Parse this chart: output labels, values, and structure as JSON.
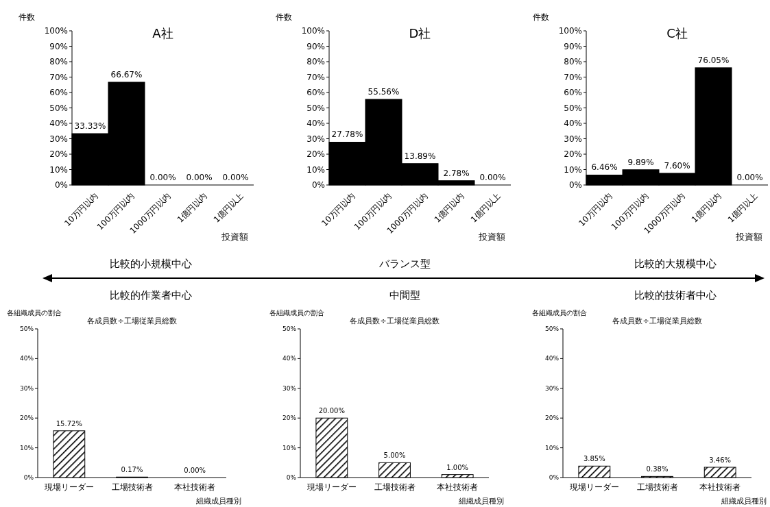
{
  "chart_data": [
    {
      "type": "bar",
      "title": "A社",
      "ylabel": "件数",
      "xlabel": "投資額",
      "categories": [
        "10万円以内",
        "100万円以内",
        "1000万円以内",
        "1億円以内",
        "1億円以上"
      ],
      "values": [
        33.33,
        66.67,
        0,
        0,
        0
      ],
      "value_labels": [
        "33.33%",
        "66.67%",
        "0.00%",
        "0.00%",
        "0.00%"
      ],
      "color": "#000000",
      "ylim": [
        0,
        100
      ],
      "yticks": [
        {
          "value": 0,
          "label": "0%"
        },
        {
          "value": 10,
          "label": "10%"
        },
        {
          "value": 20,
          "label": "20%"
        },
        {
          "value": 30,
          "label": "30%"
        },
        {
          "value": 40,
          "label": "40%"
        },
        {
          "value": 50,
          "label": "50%"
        },
        {
          "value": 60,
          "label": "60%"
        },
        {
          "value": 70,
          "label": "70%"
        },
        {
          "value": 80,
          "label": "80%"
        },
        {
          "value": 90,
          "label": "90%"
        },
        {
          "value": 100,
          "label": "100%"
        }
      ],
      "grid": false,
      "legend": false
    },
    {
      "type": "bar",
      "title": "D社",
      "ylabel": "件数",
      "xlabel": "投資額",
      "categories": [
        "10万円以内",
        "100万円以内",
        "1000万円以内",
        "1億円以内",
        "1億円以上"
      ],
      "values": [
        27.78,
        55.56,
        13.89,
        2.78,
        0
      ],
      "value_labels": [
        "27.78%",
        "55.56%",
        "13.89%",
        "2.78%",
        "0.00%"
      ],
      "color": "#000000",
      "ylim": [
        0,
        100
      ],
      "yticks": [
        {
          "value": 0,
          "label": "0%"
        },
        {
          "value": 10,
          "label": "10%"
        },
        {
          "value": 20,
          "label": "20%"
        },
        {
          "value": 30,
          "label": "30%"
        },
        {
          "value": 40,
          "label": "40%"
        },
        {
          "value": 50,
          "label": "50%"
        },
        {
          "value": 60,
          "label": "60%"
        },
        {
          "value": 70,
          "label": "70%"
        },
        {
          "value": 80,
          "label": "80%"
        },
        {
          "value": 90,
          "label": "90%"
        },
        {
          "value": 100,
          "label": "100%"
        }
      ],
      "grid": false,
      "legend": false
    },
    {
      "type": "bar",
      "title": "C社",
      "ylabel": "件数",
      "xlabel": "投資額",
      "categories": [
        "10万円以内",
        "100万円以内",
        "1000万円以内",
        "1億円以内",
        "1億円以上"
      ],
      "values": [
        6.46,
        9.89,
        7.6,
        76.05,
        0
      ],
      "value_labels": [
        "6.46%",
        "9.89%",
        "7.60%",
        "76.05%",
        "0.00%"
      ],
      "color": "#000000",
      "ylim": [
        0,
        100
      ],
      "yticks": [
        {
          "value": 0,
          "label": "0%"
        },
        {
          "value": 10,
          "label": "10%"
        },
        {
          "value": 20,
          "label": "20%"
        },
        {
          "value": 30,
          "label": "30%"
        },
        {
          "value": 40,
          "label": "40%"
        },
        {
          "value": 50,
          "label": "50%"
        },
        {
          "value": 60,
          "label": "60%"
        },
        {
          "value": 70,
          "label": "70%"
        },
        {
          "value": 80,
          "label": "80%"
        },
        {
          "value": 90,
          "label": "90%"
        },
        {
          "value": 100,
          "label": "100%"
        }
      ],
      "grid": false,
      "legend": false
    },
    {
      "type": "other",
      "annotations": [
        "比較的小規模中心",
        "バランス型",
        "比較的大規模中心",
        "比較的作業者中心",
        "中間型",
        "比較的技術者中心"
      ]
    },
    {
      "type": "bar",
      "title": "各成員数÷工場従業員総数",
      "ylabel": "各組織成員の割合",
      "xlabel": "組織成員種別",
      "categories": [
        "現場リーダー",
        "工場技術者",
        "本社技術者"
      ],
      "values": [
        15.72,
        0.17,
        0
      ],
      "value_labels": [
        "15.72%",
        "0.17%",
        "0.00%"
      ],
      "color": "#000000",
      "ylim": [
        0,
        50
      ],
      "yticks": [
        {
          "value": 0,
          "label": "0%"
        },
        {
          "value": 10,
          "label": "10%"
        },
        {
          "value": 20,
          "label": "20%"
        },
        {
          "value": 30,
          "label": "30%"
        },
        {
          "value": 40,
          "label": "40%"
        },
        {
          "value": 50,
          "label": "50%"
        }
      ],
      "grid": false,
      "legend": false
    },
    {
      "type": "bar",
      "title": "各成員数÷工場従業員総数",
      "ylabel": "各組織成員の割合",
      "xlabel": "組織成員種別",
      "categories": [
        "現場リーダー",
        "工場技術者",
        "本社技術者"
      ],
      "values": [
        20,
        5,
        1
      ],
      "value_labels": [
        "20.00%",
        "5.00%",
        "1.00%"
      ],
      "color": "#000000",
      "ylim": [
        0,
        50
      ],
      "yticks": [
        {
          "value": 0,
          "label": "0%"
        },
        {
          "value": 10,
          "label": "10%"
        },
        {
          "value": 20,
          "label": "20%"
        },
        {
          "value": 30,
          "label": "30%"
        },
        {
          "value": 40,
          "label": "40%"
        },
        {
          "value": 50,
          "label": "50%"
        }
      ],
      "grid": false,
      "legend": false
    },
    {
      "type": "bar",
      "title": "各成員数÷工場従業員総数",
      "ylabel": "各組織成員の割合",
      "xlabel": "組織成員種別",
      "categories": [
        "現場リーダー",
        "工場技術者",
        "本社技術者"
      ],
      "values": [
        3.85,
        0.38,
        3.46
      ],
      "value_labels": [
        "3.85%",
        "0.38%",
        "3.46%"
      ],
      "color": "#000000",
      "ylim": [
        0,
        50
      ],
      "yticks": [
        {
          "value": 0,
          "label": "0%"
        },
        {
          "value": 10,
          "label": "10%"
        },
        {
          "value": 20,
          "label": "20%"
        },
        {
          "value": 30,
          "label": "30%"
        },
        {
          "value": 40,
          "label": "40%"
        },
        {
          "value": 50,
          "label": "50%"
        }
      ],
      "grid": false,
      "legend": false
    }
  ]
}
